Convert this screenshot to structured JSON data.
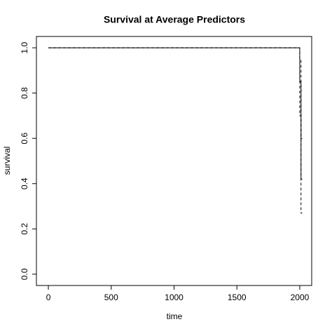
{
  "chart_data": {
    "type": "line",
    "title": "Survival at Average Predictors",
    "xlabel": "time",
    "ylabel": "survival",
    "x": [
      0,
      2000,
      2000,
      2010,
      2010,
      2020
    ],
    "series": [
      {
        "color": "#000000",
        "linestyle": "solid",
        "values": [
          1,
          1,
          0.85,
          0.85,
          0.42,
          0.42
        ]
      },
      {
        "color": "#000000",
        "linestyle": "dashed",
        "values": [
          1,
          1,
          0.7,
          0.7,
          0.27,
          0.27
        ]
      },
      {
        "color": "#000000",
        "linestyle": "dashed",
        "values": [
          1,
          1,
          0.95,
          0.95,
          0.6,
          0.6
        ]
      }
    ],
    "xlim": [
      -95,
      2095
    ],
    "xticks": [
      0,
      500,
      1000,
      1500,
      2000
    ],
    "ylim": [
      -0.05,
      1.05
    ],
    "yticks": [
      {
        "value": 0,
        "label": "0.0"
      },
      0.2,
      0.4,
      0.6,
      0.8,
      {
        "value": 1,
        "label": "1.0"
      }
    ],
    "grid": false
  }
}
